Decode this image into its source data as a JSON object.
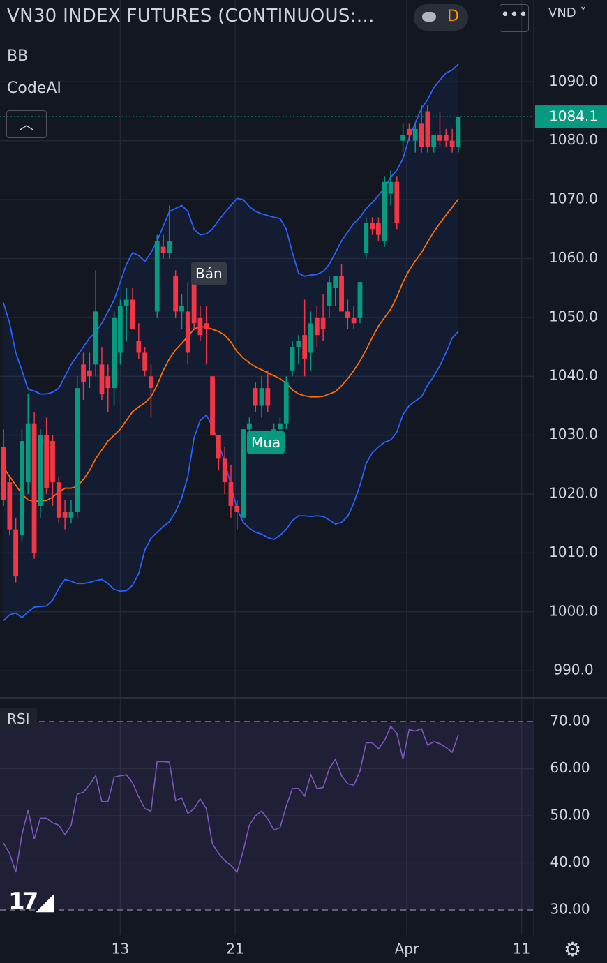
{
  "toolbar": {
    "interval": "D",
    "currency": "VND"
  },
  "chart_data": [
    {
      "type": "candlestick",
      "title": "VN30 INDEX FUTURES (CONTINUOUS:…",
      "indicators": [
        "BB",
        "CodeAI"
      ],
      "signals": [
        "Bán",
        "Mua"
      ],
      "up_color": "#089981",
      "down_color": "#f23645",
      "last_price": 1084.1,
      "ylim": [
        985.4,
        1103.9
      ],
      "yticks": [
        {
          "value": 990,
          "label": "990.0"
        },
        {
          "value": 1000,
          "label": "1000.0"
        },
        {
          "value": 1010,
          "label": "1010.0"
        },
        {
          "value": 1020,
          "label": "1020.0"
        },
        {
          "value": 1030,
          "label": "1030.0"
        },
        {
          "value": 1040,
          "label": "1040.0"
        },
        {
          "value": 1050,
          "label": "1050.0"
        },
        {
          "value": 1060,
          "label": "1060.0"
        },
        {
          "value": 1070,
          "label": "1070.0"
        },
        {
          "value": 1080,
          "label": "1080.0"
        },
        {
          "value": 1090,
          "label": "1090.0"
        }
      ],
      "open": [
        1028,
        1022,
        1014,
        1013,
        1022,
        1032,
        1018,
        1030,
        1029,
        1022,
        1017,
        1016,
        1017,
        1042,
        1041,
        1042,
        1042,
        1040,
        1038,
        1044,
        1052,
        1053,
        1046,
        1044,
        1040,
        1051,
        1062,
        1061,
        1057,
        1051,
        1051,
        1057,
        1050,
        1049,
        1040,
        1030,
        1026,
        1022,
        1018,
        1016,
        1031,
        1038,
        1035,
        1038,
        1029,
        1031,
        1032,
        1041,
        1045,
        1047,
        1044,
        1050,
        1050,
        1052,
        1055,
        1057,
        1051,
        1050,
        1050,
        1061,
        1066,
        1066,
        1063,
        1071,
        1073,
        1080,
        1082,
        1080,
        1083,
        1085,
        1079,
        1081,
        1081,
        1080,
        1079
      ],
      "high": [
        1031,
        1023,
        1016,
        1031,
        1037,
        1034,
        1031,
        1033,
        1030,
        1023,
        1019,
        1019,
        1040,
        1044,
        1044,
        1058,
        1045,
        1042,
        1051,
        1053,
        1055,
        1055,
        1049,
        1045,
        1042,
        1064,
        1064,
        1069,
        1058,
        1054,
        1056,
        1059,
        1052,
        1052,
        1040,
        1030,
        1028,
        1025,
        1019,
        1031,
        1033,
        1039,
        1040,
        1041,
        1032,
        1033,
        1040,
        1046,
        1047,
        1053,
        1051,
        1052,
        1054,
        1057,
        1057,
        1059,
        1053,
        1052,
        1056,
        1067,
        1067,
        1067,
        1074,
        1075,
        1074,
        1083,
        1083,
        1083,
        1086,
        1086,
        1081,
        1085,
        1082,
        1082,
        1084.1
      ],
      "low": [
        1018,
        1013,
        1005,
        1012,
        1020,
        1009,
        1016,
        1020,
        1018,
        1015,
        1014,
        1015,
        1016,
        1036,
        1038,
        1040,
        1036,
        1034,
        1035,
        1042,
        1046,
        1048,
        1043,
        1040,
        1033,
        1050,
        1060,
        1060,
        1050,
        1048,
        1042,
        1048,
        1046,
        1042,
        1030,
        1024,
        1020,
        1016,
        1014,
        1016,
        1029,
        1034,
        1033,
        1034,
        1027,
        1030,
        1031,
        1040,
        1042,
        1040,
        1041,
        1045,
        1046,
        1050,
        1052,
        1051,
        1048,
        1048,
        1049,
        1060,
        1064,
        1063,
        1062,
        1069,
        1065,
        1078,
        1080,
        1078,
        1078,
        1078,
        1078,
        1079,
        1079,
        1078,
        1078
      ],
      "close": [
        1019,
        1014,
        1006,
        1029,
        1032,
        1010,
        1030,
        1021,
        1022,
        1016,
        1016,
        1017,
        1038,
        1039,
        1040,
        1051,
        1037,
        1038,
        1050,
        1052,
        1053,
        1048,
        1044,
        1041,
        1038,
        1063,
        1061,
        1063,
        1051,
        1052,
        1044,
        1049,
        1047,
        1048,
        1030,
        1026,
        1022,
        1018,
        1017,
        1031,
        1032,
        1035,
        1038,
        1035,
        1031,
        1032,
        1039,
        1045,
        1046,
        1043,
        1049,
        1047,
        1048,
        1056,
        1057,
        1051,
        1050,
        1049,
        1056,
        1066,
        1065,
        1064,
        1073,
        1073,
        1066,
        1081,
        1081,
        1082,
        1079,
        1079,
        1081,
        1080,
        1080,
        1079,
        1084.1
      ],
      "overlays": [
        {
          "color": "#2962ff",
          "values": [
            1052.5,
            1049,
            1044,
            1041,
            1037.8,
            1037.5,
            1037,
            1037,
            1037.3,
            1038,
            1040,
            1042,
            1043.5,
            1045,
            1046.5,
            1047.5,
            1049,
            1051,
            1053,
            1056,
            1059,
            1061,
            1060.5,
            1059.5,
            1061,
            1063,
            1065.5,
            1068,
            1068.5,
            1069,
            1068,
            1065,
            1064,
            1064.2,
            1065,
            1066.5,
            1067.8,
            1069,
            1070.2,
            1070,
            1068.8,
            1068,
            1067.6,
            1067.3,
            1067,
            1066.8,
            1065,
            1061,
            1057.5,
            1057,
            1057.2,
            1057.3,
            1057.8,
            1059,
            1061,
            1063,
            1064.5,
            1066,
            1067,
            1068.5,
            1069.5,
            1070.7,
            1072,
            1073.8,
            1075,
            1077,
            1080.5,
            1083,
            1085.5,
            1087,
            1089,
            1090.3,
            1091.5,
            1092,
            1093
          ]
        },
        {
          "color": "#ff6d00",
          "values": [
            1024.5,
            1023,
            1021.5,
            1020,
            1019,
            1018.8,
            1018.8,
            1018.9,
            1019.5,
            1020.3,
            1021,
            1021,
            1021.3,
            1022.5,
            1024,
            1026,
            1027.5,
            1029,
            1030,
            1031,
            1032.5,
            1034,
            1034.8,
            1035.5,
            1036.5,
            1038.5,
            1041,
            1043,
            1044.5,
            1045.6,
            1046.8,
            1048,
            1048.5,
            1048.3,
            1048,
            1047.6,
            1047,
            1045.8,
            1044.2,
            1043.1,
            1042.3,
            1041.6,
            1041.1,
            1040.6,
            1040.1,
            1039.6,
            1038.8,
            1037.7,
            1037,
            1036.7,
            1036.5,
            1036.5,
            1036.6,
            1037,
            1037.4,
            1038.4,
            1039.6,
            1041,
            1042.6,
            1044.5,
            1046.6,
            1048.5,
            1050,
            1051.4,
            1053.5,
            1056,
            1058,
            1059.6,
            1061,
            1062.8,
            1064.5,
            1066,
            1067.4,
            1068.7,
            1070.1
          ]
        },
        {
          "color": "#2962ff",
          "values": [
            998.5,
            999.5,
            999.8,
            999,
            1000,
            1000.8,
            1000.9,
            1001,
            1002,
            1004,
            1005.5,
            1005.2,
            1004.8,
            1004.8,
            1005,
            1005.3,
            1005.5,
            1004.8,
            1003.8,
            1003.5,
            1003.6,
            1004.5,
            1006.5,
            1010.5,
            1012.5,
            1013.5,
            1014.5,
            1015.3,
            1017,
            1019.3,
            1023,
            1029.5,
            1032.5,
            1033.4,
            1031.5,
            1028.5,
            1025.5,
            1021.5,
            1017.5,
            1015.2,
            1014.2,
            1013.5,
            1013.2,
            1012.6,
            1012.3,
            1013,
            1014,
            1015.5,
            1016.3,
            1016.3,
            1016.2,
            1016.3,
            1016.2,
            1015.6,
            1014.9,
            1015.2,
            1016.2,
            1018.5,
            1021.5,
            1025.2,
            1027,
            1028,
            1028.8,
            1029.2,
            1030.5,
            1033.5,
            1035,
            1035.8,
            1036.5,
            1038.5,
            1040,
            1041.8,
            1044,
            1046.5,
            1047.6
          ]
        }
      ]
    },
    {
      "type": "line",
      "title": "RSI",
      "color": "#7e57c2",
      "values": [
        44.2,
        42,
        38,
        46,
        51.2,
        45,
        49.5,
        49.5,
        48.5,
        48,
        46,
        48,
        54.6,
        55,
        56.6,
        58.5,
        53,
        53,
        58.2,
        58.5,
        58.7,
        57,
        54,
        51.5,
        51,
        61.5,
        61.5,
        61.4,
        53.2,
        53.8,
        50.5,
        51.5,
        53.6,
        51.5,
        44,
        42,
        40.5,
        39.5,
        38,
        42.5,
        48,
        50,
        51,
        49.3,
        47,
        47.5,
        52,
        55.8,
        55.8,
        54.2,
        58.7,
        55.8,
        56,
        60,
        62,
        58.5,
        56.8,
        56.5,
        59.5,
        65.5,
        65.5,
        64.2,
        66,
        69,
        67.5,
        62,
        68.3,
        68,
        68.5,
        65,
        65.7,
        65.3,
        64.5,
        63.5,
        67.2
      ],
      "ylim": [
        24.67,
        75.04
      ],
      "yticks": [
        {
          "value": 30,
          "label": "30.00"
        },
        {
          "value": 40,
          "label": "40.00"
        },
        {
          "value": 50,
          "label": "50.00"
        },
        {
          "value": 60,
          "label": "60.00"
        },
        {
          "value": 70,
          "label": "70.00"
        }
      ],
      "xlim": [
        -0.57,
        86.27
      ],
      "xticks": [
        {
          "value": 19,
          "label": "13"
        },
        {
          "value": 37.7,
          "label": "21"
        },
        {
          "value": 65.6,
          "label": "Apr"
        },
        {
          "value": 84.3,
          "label": "11"
        }
      ]
    }
  ]
}
